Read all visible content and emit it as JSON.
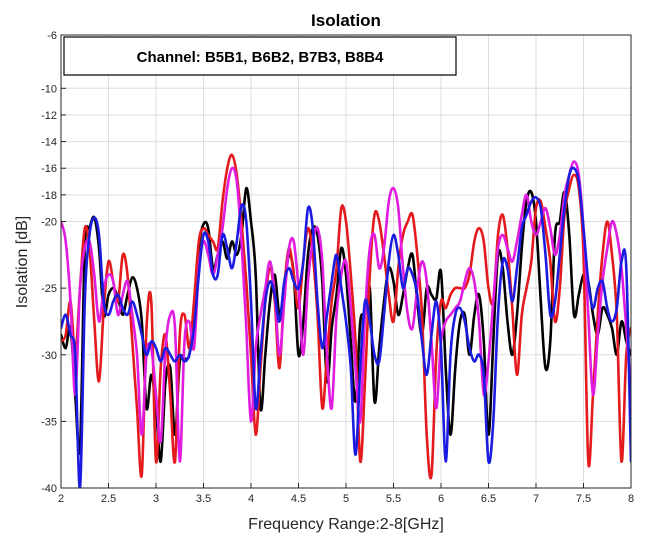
{
  "chart_data": {
    "type": "line",
    "title": "Isolation",
    "xlabel": "Frequency Range:2-8[GHz]",
    "ylabel": "Isolation [dB]",
    "xlim": [
      2,
      8
    ],
    "ylim": [
      -40,
      -6
    ],
    "x_ticks": [
      "2",
      "2.5",
      "3",
      "3.5",
      "4",
      "4.5",
      "5",
      "5.5",
      "6",
      "6.5",
      "7",
      "7.5",
      "8"
    ],
    "y_ticks": [
      "-40",
      "-35",
      "-30",
      "-25",
      "-20",
      "-18",
      "-16",
      "-14",
      "-12",
      "-10",
      "-6"
    ],
    "y_tick_values": [
      -40,
      -35,
      -30,
      -25,
      -20,
      -18,
      -16,
      -14,
      -12,
      -10,
      -6
    ],
    "grid": true,
    "annotation": "Channel: B5B1, B6B2, B7B3, B8B4",
    "series": [
      {
        "color": "#000000",
        "x": [
          2.0,
          2.05,
          2.1,
          2.15,
          2.2,
          2.25,
          2.3,
          2.35,
          2.4,
          2.45,
          2.5,
          2.55,
          2.6,
          2.65,
          2.7,
          2.75,
          2.8,
          2.85,
          2.9,
          2.95,
          3.0,
          3.05,
          3.1,
          3.15,
          3.2,
          3.25,
          3.3,
          3.35,
          3.4,
          3.45,
          3.5,
          3.55,
          3.6,
          3.65,
          3.7,
          3.75,
          3.8,
          3.85,
          3.9,
          3.95,
          4.0,
          4.05,
          4.1,
          4.15,
          4.2,
          4.25,
          4.3,
          4.35,
          4.4,
          4.45,
          4.5,
          4.55,
          4.6,
          4.65,
          4.7,
          4.75,
          4.8,
          4.85,
          4.9,
          4.95,
          5.0,
          5.05,
          5.1,
          5.15,
          5.2,
          5.25,
          5.3,
          5.35,
          5.4,
          5.45,
          5.5,
          5.55,
          5.6,
          5.65,
          5.7,
          5.75,
          5.8,
          5.85,
          5.9,
          5.95,
          6.0,
          6.05,
          6.1,
          6.15,
          6.2,
          6.25,
          6.3,
          6.35,
          6.4,
          6.45,
          6.5,
          6.55,
          6.6,
          6.65,
          6.7,
          6.75,
          6.8,
          6.85,
          6.9,
          6.95,
          7.0,
          7.05,
          7.1,
          7.15,
          7.2,
          7.25,
          7.3,
          7.35,
          7.4,
          7.45,
          7.5,
          7.55,
          7.6,
          7.65,
          7.7,
          7.75,
          7.8,
          7.85,
          7.9,
          7.95,
          8.0
        ],
        "y": [
          -28.5,
          -29.5,
          -28.0,
          -33.0,
          -37.0,
          -22.0,
          -20.5,
          -19.7,
          -22.0,
          -27.0,
          -25.5,
          -25.0,
          -25.7,
          -27.0,
          -25.5,
          -24.2,
          -25.0,
          -27.5,
          -34.0,
          -31.5,
          -34.0,
          -38.0,
          -32.0,
          -31.0,
          -36.0,
          -30.5,
          -30.3,
          -30.0,
          -27.0,
          -22.0,
          -20.2,
          -20.5,
          -23.5,
          -22.5,
          -21.5,
          -22.8,
          -21.5,
          -22.5,
          -21.0,
          -17.5,
          -20.0,
          -24.0,
          -34.0,
          -30.0,
          -26.0,
          -24.0,
          -27.0,
          -25.0,
          -22.5,
          -24.0,
          -30.0,
          -27.5,
          -22.5,
          -20.5,
          -21.0,
          -24.5,
          -32.0,
          -28.0,
          -25.5,
          -22.0,
          -24.0,
          -29.0,
          -33.5,
          -27.5,
          -27.0,
          -25.0,
          -33.5,
          -29.5,
          -26.0,
          -23.5,
          -24.5,
          -27.0,
          -25.5,
          -23.5,
          -22.5,
          -26.0,
          -28.5,
          -25.0,
          -25.5,
          -25.8,
          -23.8,
          -31.0,
          -36.0,
          -31.0,
          -27.5,
          -27.0,
          -30.0,
          -27.0,
          -25.5,
          -29.0,
          -36.0,
          -29.0,
          -22.5,
          -23.5,
          -27.5,
          -30.0,
          -27.0,
          -22.0,
          -18.5,
          -17.8,
          -20.0,
          -26.0,
          -31.0,
          -29.0,
          -21.0,
          -20.0,
          -17.8,
          -21.0,
          -27.0,
          -25.5,
          -24.0,
          -24.5,
          -27.0,
          -28.5,
          -26.5,
          -27.0,
          -28.0,
          -30.0,
          -27.5,
          -29.0,
          -30.0
        ]
      },
      {
        "color": "#e41a1c",
        "x": [
          2.0,
          2.05,
          2.1,
          2.15,
          2.2,
          2.25,
          2.3,
          2.35,
          2.4,
          2.45,
          2.5,
          2.55,
          2.6,
          2.65,
          2.7,
          2.75,
          2.8,
          2.85,
          2.9,
          2.95,
          3.0,
          3.05,
          3.1,
          3.15,
          3.2,
          3.25,
          3.3,
          3.35,
          3.4,
          3.45,
          3.5,
          3.55,
          3.6,
          3.65,
          3.7,
          3.75,
          3.8,
          3.85,
          3.9,
          3.95,
          4.0,
          4.05,
          4.1,
          4.15,
          4.2,
          4.25,
          4.3,
          4.35,
          4.4,
          4.45,
          4.5,
          4.55,
          4.6,
          4.65,
          4.7,
          4.75,
          4.8,
          4.85,
          4.9,
          4.95,
          5.0,
          5.05,
          5.1,
          5.15,
          5.2,
          5.25,
          5.3,
          5.35,
          5.4,
          5.45,
          5.5,
          5.55,
          5.6,
          5.65,
          5.7,
          5.75,
          5.8,
          5.85,
          5.9,
          5.95,
          6.0,
          6.05,
          6.1,
          6.15,
          6.2,
          6.25,
          6.3,
          6.35,
          6.4,
          6.45,
          6.5,
          6.55,
          6.6,
          6.65,
          6.7,
          6.75,
          6.8,
          6.85,
          6.9,
          6.95,
          7.0,
          7.05,
          7.1,
          7.15,
          7.2,
          7.25,
          7.3,
          7.35,
          7.4,
          7.45,
          7.5,
          7.55,
          7.6,
          7.65,
          7.7,
          7.75,
          7.8,
          7.85,
          7.9,
          7.95,
          8.0
        ],
        "y": [
          -29.0,
          -28.5,
          -26.0,
          -30.0,
          -25.0,
          -20.5,
          -22.0,
          -27.5,
          -32.0,
          -26.5,
          -23.0,
          -24.5,
          -26.0,
          -22.5,
          -24.0,
          -29.0,
          -34.0,
          -39.0,
          -28.0,
          -26.0,
          -38.0,
          -31.0,
          -28.5,
          -33.0,
          -38.0,
          -28.5,
          -27.0,
          -29.5,
          -26.0,
          -21.5,
          -20.5,
          -21.0,
          -21.5,
          -22.0,
          -18.5,
          -16.0,
          -15.0,
          -16.5,
          -20.0,
          -24.5,
          -30.0,
          -36.0,
          -31.0,
          -26.0,
          -23.5,
          -26.0,
          -31.0,
          -25.0,
          -22.0,
          -24.0,
          -26.5,
          -23.0,
          -20.5,
          -22.5,
          -27.0,
          -34.0,
          -30.0,
          -26.0,
          -23.5,
          -19.0,
          -20.0,
          -24.0,
          -29.0,
          -38.0,
          -32.0,
          -24.0,
          -19.5,
          -20.0,
          -22.5,
          -25.5,
          -27.5,
          -23.5,
          -21.0,
          -20.0,
          -19.5,
          -22.5,
          -27.0,
          -36.0,
          -39.0,
          -30.0,
          -26.0,
          -26.5,
          -25.5,
          -25.0,
          -25.0,
          -25.0,
          -24.0,
          -21.5,
          -20.5,
          -21.5,
          -25.0,
          -26.0,
          -21.0,
          -19.5,
          -22.0,
          -26.5,
          -31.5,
          -27.0,
          -25.0,
          -23.0,
          -19.0,
          -18.5,
          -20.5,
          -23.0,
          -27.5,
          -25.0,
          -19.5,
          -17.5,
          -16.5,
          -17.5,
          -22.5,
          -38.0,
          -33.0,
          -27.0,
          -22.5,
          -20.0,
          -22.5,
          -27.0,
          -38.0,
          -30.0,
          -28.0
        ]
      },
      {
        "color": "#e01ce0",
        "x": [
          2.0,
          2.05,
          2.1,
          2.15,
          2.2,
          2.25,
          2.3,
          2.35,
          2.4,
          2.45,
          2.5,
          2.55,
          2.6,
          2.65,
          2.7,
          2.75,
          2.8,
          2.85,
          2.9,
          2.95,
          3.0,
          3.05,
          3.1,
          3.15,
          3.2,
          3.25,
          3.3,
          3.35,
          3.4,
          3.45,
          3.5,
          3.55,
          3.6,
          3.65,
          3.7,
          3.75,
          3.8,
          3.85,
          3.9,
          3.95,
          4.0,
          4.05,
          4.1,
          4.15,
          4.2,
          4.25,
          4.3,
          4.35,
          4.4,
          4.45,
          4.5,
          4.55,
          4.6,
          4.65,
          4.7,
          4.75,
          4.8,
          4.85,
          4.9,
          4.95,
          5.0,
          5.05,
          5.1,
          5.15,
          5.2,
          5.25,
          5.3,
          5.35,
          5.4,
          5.45,
          5.5,
          5.55,
          5.6,
          5.65,
          5.7,
          5.75,
          5.8,
          5.85,
          5.9,
          5.95,
          6.0,
          6.05,
          6.1,
          6.15,
          6.2,
          6.25,
          6.3,
          6.35,
          6.4,
          6.45,
          6.5,
          6.55,
          6.6,
          6.65,
          6.7,
          6.75,
          6.8,
          6.85,
          6.9,
          6.95,
          7.0,
          7.05,
          7.1,
          7.15,
          7.2,
          7.25,
          7.3,
          7.35,
          7.4,
          7.45,
          7.5,
          7.55,
          7.6,
          7.65,
          7.7,
          7.75,
          7.8,
          7.85,
          7.9,
          7.95,
          8.0
        ],
        "y": [
          -20.0,
          -21.5,
          -26.0,
          -33.0,
          -25.0,
          -22.0,
          -21.5,
          -24.0,
          -27.5,
          -25.0,
          -24.0,
          -24.5,
          -27.0,
          -25.5,
          -24.5,
          -27.0,
          -30.0,
          -36.0,
          -30.0,
          -29.5,
          -33.0,
          -36.5,
          -29.5,
          -27.0,
          -28.0,
          -38.0,
          -29.0,
          -27.5,
          -29.5,
          -23.5,
          -21.5,
          -22.5,
          -24.0,
          -22.5,
          -20.5,
          -17.5,
          -16.0,
          -17.0,
          -21.5,
          -28.0,
          -35.0,
          -29.5,
          -27.0,
          -25.0,
          -23.0,
          -25.5,
          -30.0,
          -26.0,
          -22.0,
          -21.5,
          -25.0,
          -30.0,
          -24.5,
          -21.5,
          -20.5,
          -23.0,
          -30.0,
          -34.0,
          -27.0,
          -24.0,
          -23.0,
          -26.5,
          -31.0,
          -35.0,
          -27.0,
          -22.0,
          -21.0,
          -23.5,
          -22.0,
          -18.5,
          -17.5,
          -19.0,
          -23.5,
          -27.0,
          -28.0,
          -25.0,
          -23.0,
          -24.5,
          -29.0,
          -34.0,
          -29.0,
          -27.5,
          -27.0,
          -26.5,
          -26.0,
          -24.5,
          -23.5,
          -24.5,
          -27.5,
          -33.0,
          -30.5,
          -26.0,
          -22.0,
          -21.0,
          -22.0,
          -23.0,
          -21.5,
          -19.5,
          -18.0,
          -20.0,
          -21.0,
          -20.0,
          -19.0,
          -20.5,
          -22.5,
          -21.0,
          -18.0,
          -16.5,
          -15.5,
          -16.5,
          -20.5,
          -27.0,
          -33.0,
          -28.5,
          -24.5,
          -22.0,
          -20.0,
          -21.0,
          -23.5,
          -28.0,
          -33.0
        ]
      },
      {
        "color": "#1c1ce0",
        "x": [
          2.0,
          2.05,
          2.1,
          2.15,
          2.2,
          2.25,
          2.3,
          2.35,
          2.4,
          2.45,
          2.5,
          2.55,
          2.6,
          2.65,
          2.7,
          2.75,
          2.8,
          2.85,
          2.9,
          2.95,
          3.0,
          3.05,
          3.1,
          3.15,
          3.2,
          3.25,
          3.3,
          3.35,
          3.4,
          3.45,
          3.5,
          3.55,
          3.6,
          3.65,
          3.7,
          3.75,
          3.8,
          3.85,
          3.9,
          3.95,
          4.0,
          4.05,
          4.1,
          4.15,
          4.2,
          4.25,
          4.3,
          4.35,
          4.4,
          4.45,
          4.5,
          4.55,
          4.6,
          4.65,
          4.7,
          4.75,
          4.8,
          4.85,
          4.9,
          4.95,
          5.0,
          5.05,
          5.1,
          5.15,
          5.2,
          5.25,
          5.3,
          5.35,
          5.4,
          5.45,
          5.5,
          5.55,
          5.6,
          5.65,
          5.7,
          5.75,
          5.8,
          5.85,
          5.9,
          5.95,
          6.0,
          6.05,
          6.1,
          6.15,
          6.2,
          6.25,
          6.3,
          6.35,
          6.4,
          6.45,
          6.5,
          6.55,
          6.6,
          6.65,
          6.7,
          6.75,
          6.8,
          6.85,
          6.9,
          6.95,
          7.0,
          7.05,
          7.1,
          7.15,
          7.2,
          7.25,
          7.3,
          7.35,
          7.4,
          7.45,
          7.5,
          7.55,
          7.6,
          7.65,
          7.7,
          7.75,
          7.8,
          7.85,
          7.9,
          7.95,
          8.0
        ],
        "y": [
          -28.0,
          -27.0,
          -28.5,
          -30.0,
          -40.0,
          -26.0,
          -21.0,
          -19.7,
          -21.0,
          -26.0,
          -27.0,
          -26.0,
          -25.5,
          -26.5,
          -27.0,
          -26.0,
          -27.0,
          -28.5,
          -30.0,
          -29.0,
          -29.5,
          -30.5,
          -29.5,
          -30.0,
          -30.5,
          -30.0,
          -30.5,
          -30.0,
          -28.0,
          -24.0,
          -21.0,
          -21.5,
          -24.0,
          -24.0,
          -21.0,
          -22.0,
          -23.5,
          -21.5,
          -18.8,
          -20.0,
          -26.0,
          -34.0,
          -30.0,
          -26.0,
          -24.5,
          -25.5,
          -27.5,
          -24.5,
          -23.5,
          -24.5,
          -25.0,
          -23.0,
          -19.0,
          -20.5,
          -26.0,
          -29.5,
          -27.0,
          -24.5,
          -22.5,
          -25.0,
          -27.5,
          -31.0,
          -37.5,
          -31.0,
          -26.0,
          -27.5,
          -30.0,
          -30.5,
          -27.0,
          -23.0,
          -21.0,
          -22.5,
          -25.0,
          -23.5,
          -24.0,
          -25.5,
          -29.0,
          -31.5,
          -28.5,
          -26.0,
          -29.5,
          -38.0,
          -30.0,
          -27.0,
          -26.5,
          -27.5,
          -29.5,
          -30.5,
          -30.0,
          -31.5,
          -38.0,
          -35.0,
          -27.0,
          -23.0,
          -23.5,
          -26.0,
          -23.5,
          -20.5,
          -19.5,
          -18.5,
          -18.2,
          -19.0,
          -22.5,
          -27.0,
          -26.0,
          -22.5,
          -19.0,
          -16.5,
          -16.0,
          -17.0,
          -20.5,
          -24.5,
          -26.5,
          -25.0,
          -24.5,
          -26.5,
          -27.5,
          -26.5,
          -23.0,
          -23.5,
          -38.0
        ]
      }
    ]
  }
}
